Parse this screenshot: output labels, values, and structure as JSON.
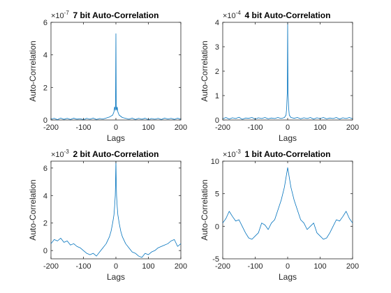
{
  "chart_data": [
    {
      "type": "line",
      "title": "7 bit Auto-Correlation",
      "xlabel": "Lags",
      "ylabel": "Auto-Correlation",
      "exponent_label": "×10",
      "exponent_power": "-7",
      "xlim": [
        -200,
        200
      ],
      "ylim": [
        0,
        6
      ],
      "xticks": [
        -200,
        -100,
        0,
        100,
        200
      ],
      "yticks": [
        0,
        2,
        4,
        6
      ],
      "x": [
        -200,
        -190,
        -180,
        -170,
        -160,
        -150,
        -140,
        -130,
        -120,
        -110,
        -100,
        -90,
        -80,
        -70,
        -60,
        -50,
        -40,
        -30,
        -20,
        -10,
        -6,
        -4,
        -2,
        -1,
        0,
        1,
        2,
        4,
        6,
        10,
        20,
        30,
        40,
        50,
        60,
        70,
        80,
        90,
        100,
        110,
        120,
        130,
        140,
        150,
        160,
        170,
        180,
        190,
        200
      ],
      "values": [
        0.05,
        0.1,
        0.02,
        0.12,
        0.04,
        0.1,
        0.03,
        0.11,
        0.05,
        0.08,
        0.02,
        0.1,
        0.05,
        0.12,
        0.03,
        0.09,
        0.06,
        0.12,
        0.18,
        0.3,
        0.5,
        0.8,
        0.6,
        1.0,
        5.3,
        0.7,
        0.6,
        0.8,
        0.5,
        0.3,
        0.15,
        0.1,
        0.05,
        0.12,
        0.03,
        0.1,
        0.05,
        0.11,
        0.02,
        0.09,
        0.05,
        0.1,
        0.03,
        0.12,
        0.06,
        0.1,
        0.04,
        0.11,
        0.05
      ]
    },
    {
      "type": "line",
      "title": "4 bit Auto-Correlation",
      "xlabel": "Lags",
      "ylabel": "Auto-Correlation",
      "exponent_label": "×10",
      "exponent_power": "-4",
      "xlim": [
        -200,
        200
      ],
      "ylim": [
        0,
        4
      ],
      "xticks": [
        -200,
        -100,
        0,
        100,
        200
      ],
      "yticks": [
        0,
        1,
        2,
        3,
        4
      ],
      "x": [
        -200,
        -190,
        -180,
        -170,
        -160,
        -150,
        -140,
        -130,
        -120,
        -110,
        -100,
        -90,
        -80,
        -70,
        -60,
        -50,
        -40,
        -30,
        -20,
        -10,
        -5,
        -3,
        -1,
        0,
        1,
        3,
        5,
        10,
        20,
        30,
        40,
        50,
        60,
        70,
        80,
        90,
        100,
        110,
        120,
        130,
        140,
        150,
        160,
        170,
        180,
        190,
        200
      ],
      "values": [
        0.05,
        0.1,
        0.04,
        0.09,
        0.06,
        0.11,
        0.03,
        0.08,
        0.07,
        0.1,
        0.04,
        0.09,
        0.06,
        0.1,
        0.05,
        0.08,
        0.06,
        0.1,
        0.06,
        0.1,
        0.2,
        0.5,
        1.2,
        4.0,
        1.2,
        0.5,
        0.2,
        0.1,
        0.07,
        0.1,
        0.05,
        0.09,
        0.06,
        0.1,
        0.04,
        0.09,
        0.06,
        0.1,
        0.05,
        0.08,
        0.06,
        0.1,
        0.04,
        0.09,
        0.06,
        0.1,
        0.05
      ]
    },
    {
      "type": "line",
      "title": "2 bit Auto-Correlation",
      "xlabel": "Lags",
      "ylabel": "Auto-Correlation",
      "exponent_label": "×10",
      "exponent_power": "-3",
      "xlim": [
        -200,
        200
      ],
      "ylim": [
        -0.6,
        6.5
      ],
      "xticks": [
        -200,
        -100,
        0,
        100,
        200
      ],
      "yticks": [
        0,
        2,
        4,
        6
      ],
      "x": [
        -200,
        -190,
        -180,
        -170,
        -160,
        -150,
        -140,
        -130,
        -120,
        -110,
        -100,
        -90,
        -80,
        -70,
        -60,
        -50,
        -40,
        -30,
        -20,
        -15,
        -10,
        -6,
        -4,
        -2,
        -1,
        0,
        1,
        2,
        4,
        6,
        10,
        15,
        20,
        30,
        40,
        50,
        60,
        70,
        80,
        90,
        100,
        110,
        120,
        130,
        140,
        150,
        160,
        170,
        180,
        190,
        200
      ],
      "values": [
        0.5,
        0.8,
        0.7,
        0.9,
        0.6,
        0.7,
        0.4,
        0.5,
        0.3,
        0.2,
        0.0,
        -0.2,
        -0.3,
        -0.2,
        -0.4,
        -0.1,
        0.2,
        0.5,
        1.0,
        1.4,
        2.0,
        2.6,
        3.2,
        4.0,
        5.0,
        6.5,
        5.0,
        4.0,
        3.2,
        2.6,
        2.0,
        1.4,
        1.0,
        0.5,
        0.2,
        -0.1,
        -0.2,
        -0.4,
        -0.5,
        -0.2,
        -0.3,
        -0.1,
        0.0,
        0.2,
        0.3,
        0.4,
        0.5,
        0.7,
        0.8,
        0.3,
        0.5
      ]
    },
    {
      "type": "line",
      "title": "1 bit Auto-Correlation",
      "xlabel": "Lags",
      "ylabel": "Auto-Correlation",
      "exponent_label": "×10",
      "exponent_power": "-3",
      "xlim": [
        -200,
        200
      ],
      "ylim": [
        -5,
        10
      ],
      "xticks": [
        -200,
        -100,
        0,
        100,
        200
      ],
      "yticks": [
        -5,
        0,
        5,
        10
      ],
      "x": [
        -200,
        -190,
        -180,
        -170,
        -160,
        -150,
        -140,
        -130,
        -120,
        -110,
        -100,
        -90,
        -80,
        -70,
        -60,
        -50,
        -40,
        -30,
        -20,
        -10,
        -5,
        0,
        5,
        10,
        20,
        30,
        40,
        50,
        60,
        70,
        80,
        90,
        100,
        110,
        120,
        130,
        140,
        150,
        160,
        170,
        180,
        190,
        200
      ],
      "values": [
        0.5,
        1.2,
        2.3,
        1.5,
        0.8,
        1.0,
        0.0,
        -1.0,
        -1.8,
        -2.0,
        -1.5,
        -1.0,
        0.5,
        0.2,
        -0.5,
        0.5,
        1.0,
        2.5,
        4.0,
        6.0,
        7.5,
        9.0,
        7.5,
        6.0,
        4.0,
        2.5,
        1.0,
        0.5,
        -0.5,
        0.0,
        0.5,
        -1.0,
        -1.5,
        -2.0,
        -1.8,
        -1.0,
        0.0,
        1.0,
        0.8,
        1.5,
        2.3,
        1.2,
        0.5
      ]
    }
  ]
}
